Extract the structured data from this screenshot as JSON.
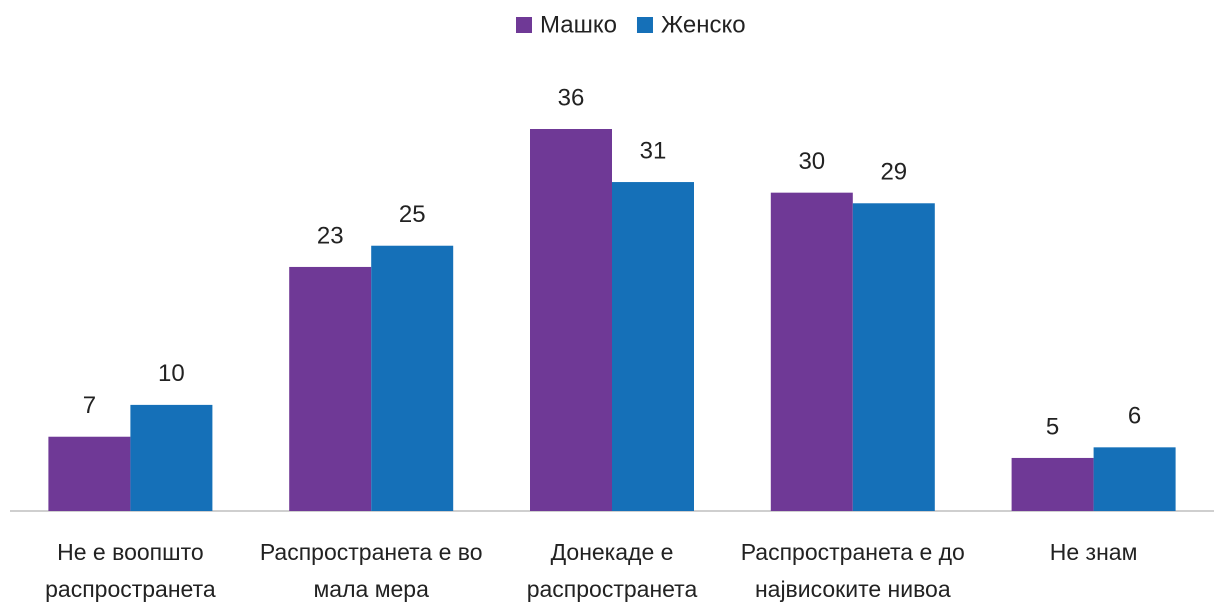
{
  "chart_data": {
    "type": "bar",
    "categories": [
      "Не е воопшто распространета",
      "Распространета е во мала мера",
      "Донекаде е распространета",
      "Распространета е до највисоките нивоа",
      "Не знам"
    ],
    "series": [
      {
        "name": "Машко",
        "color": "#6f3996",
        "values": [
          7,
          23,
          36,
          30,
          5
        ]
      },
      {
        "name": "Женско",
        "color": "#1570b8",
        "values": [
          10,
          25,
          31,
          29,
          6
        ]
      }
    ],
    "legend": "top"
  }
}
